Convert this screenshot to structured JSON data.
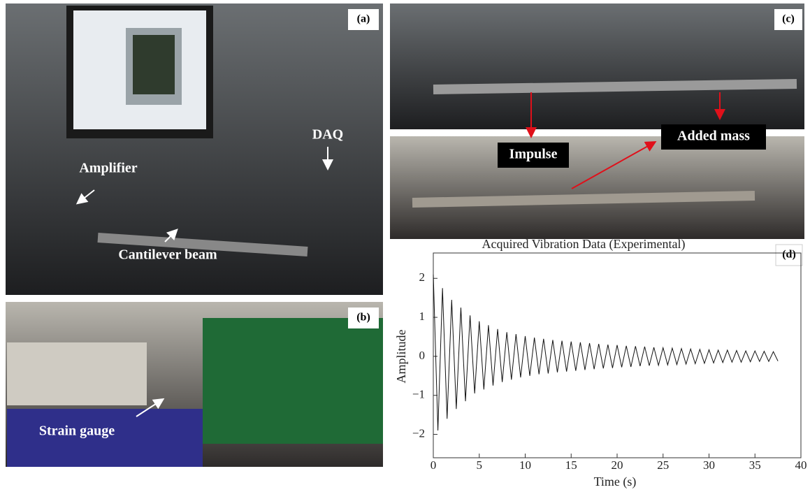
{
  "panels": {
    "a": {
      "tag": "(a)",
      "labels": [
        "DAQ",
        "Amplifier",
        "Cantilever beam"
      ]
    },
    "b": {
      "tag": "(b)",
      "labels": [
        "Strain gauge"
      ]
    },
    "c": {
      "tag": "(c)",
      "labels": [
        "Impulse",
        "Added mass"
      ]
    },
    "d": {
      "tag": "(d)"
    }
  },
  "chart_data": {
    "type": "line",
    "title": "Acquired Vibration Data (Experimental)",
    "x_label": "Time (s)",
    "y_label": "Amplitude",
    "xlim": [
      0,
      40
    ],
    "ylim": [
      -2.6,
      2.65
    ],
    "xticks": [
      0,
      5,
      10,
      15,
      20,
      25,
      30,
      35,
      40
    ],
    "yticks": [
      {
        "value": -2,
        "label": "−2"
      },
      {
        "value": -1,
        "label": "−1"
      },
      0,
      1,
      2
    ],
    "series": [
      {
        "color": "#111111",
        "x": [
          0,
          0.5,
          1,
          1.5,
          2,
          2.5,
          3,
          3.5,
          4,
          4.5,
          5,
          5.5,
          6,
          6.5,
          7,
          7.5,
          8,
          8.5,
          9,
          9.5,
          10,
          10.5,
          11,
          11.5,
          12,
          12.5,
          13,
          13.5,
          14,
          14.5,
          15,
          15.5,
          16,
          16.5,
          17,
          17.5,
          18,
          18.5,
          19,
          19.5,
          20,
          20.5,
          21,
          21.5,
          22,
          22.5,
          23,
          23.5,
          24,
          24.5,
          25,
          25.5,
          26,
          26.5,
          27,
          27.5,
          28,
          28.5,
          29,
          29.5,
          30,
          30.5,
          31,
          31.5,
          32,
          32.5,
          33,
          33.5,
          34,
          34.5,
          35,
          35.5,
          36,
          36.5,
          37,
          37.5
        ],
        "values": [
          2.1,
          -1.9,
          1.75,
          -1.6,
          1.45,
          -1.35,
          1.25,
          -1.15,
          1.05,
          -0.95,
          0.9,
          -0.85,
          0.8,
          -0.75,
          0.7,
          -0.66,
          0.62,
          -0.6,
          0.57,
          -0.54,
          0.52,
          -0.5,
          0.48,
          -0.46,
          0.45,
          -0.44,
          0.42,
          -0.41,
          0.4,
          -0.39,
          0.38,
          -0.37,
          0.36,
          -0.35,
          0.34,
          -0.33,
          0.32,
          -0.31,
          0.3,
          -0.3,
          0.29,
          -0.28,
          0.27,
          -0.27,
          0.26,
          -0.25,
          0.25,
          -0.24,
          0.23,
          -0.23,
          0.22,
          -0.22,
          0.21,
          -0.21,
          0.2,
          -0.2,
          0.19,
          -0.19,
          0.18,
          -0.18,
          0.17,
          -0.17,
          0.16,
          -0.16,
          0.16,
          -0.15,
          0.15,
          -0.15,
          0.14,
          -0.14,
          0.14,
          -0.13,
          0.13,
          -0.13,
          0.12,
          -0.12
        ]
      }
    ]
  }
}
